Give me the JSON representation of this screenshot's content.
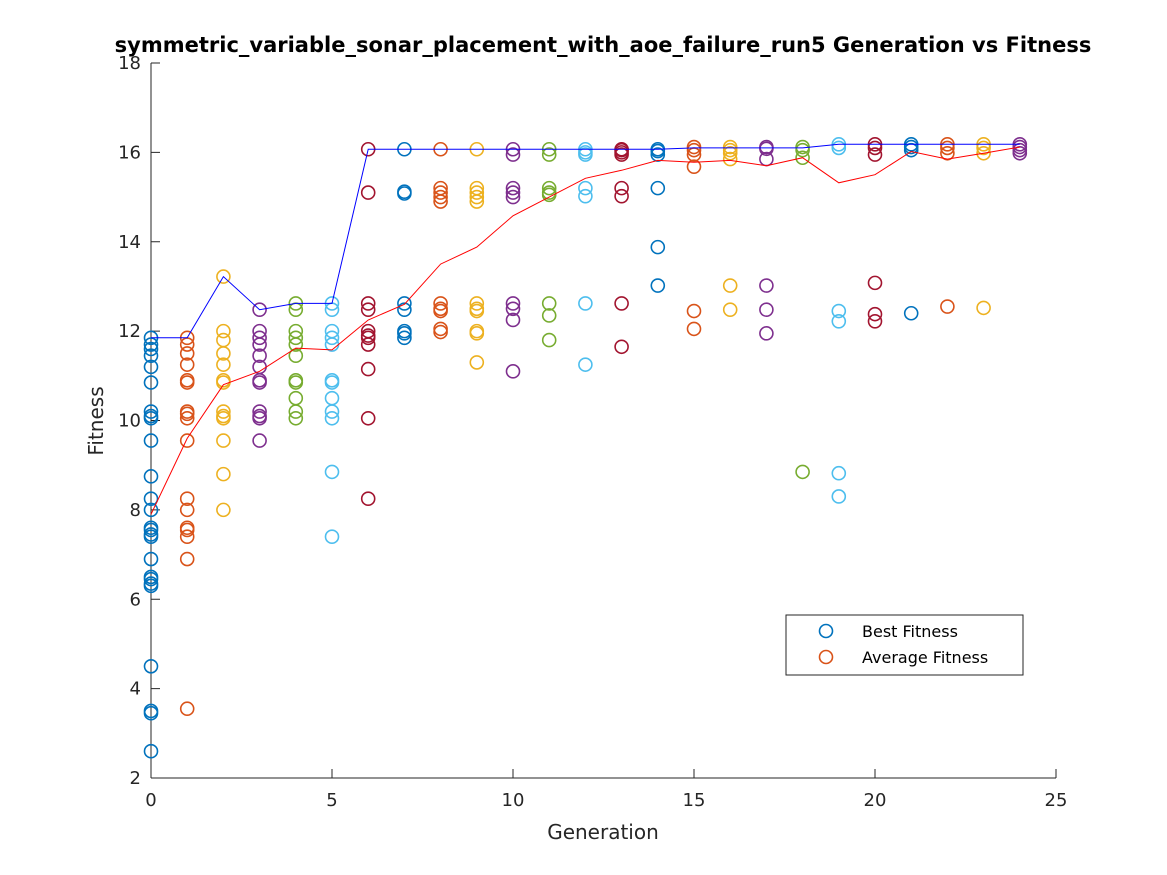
{
  "chart_data": {
    "type": "scatter",
    "title": "symmetric_variable_sonar_placement_with_aoe_failure_run5 Generation vs Fitness",
    "xlabel": "Generation",
    "ylabel": "Fitness",
    "xlim": [
      0,
      25
    ],
    "ylim": [
      2,
      18
    ],
    "xticks": [
      0,
      5,
      10,
      15,
      20,
      25
    ],
    "yticks": [
      2,
      4,
      6,
      8,
      10,
      12,
      14,
      16,
      18
    ],
    "grid": false,
    "legend": {
      "placement": "bottom-right",
      "entries": [
        "Best Fitness",
        "Average Fitness"
      ]
    },
    "colors": {
      "blue": "#0072bd",
      "orange": "#d95319",
      "yellow": "#edb120",
      "purple": "#7e2f8e",
      "green": "#77ac30",
      "cyan": "#4dbeee",
      "maroon": "#a2142f",
      "best_line": "#0000ff",
      "avg_line": "#ff0000"
    },
    "best_fitness_line": {
      "x": [
        0,
        1,
        2,
        3,
        4,
        5,
        6,
        7,
        8,
        9,
        10,
        11,
        12,
        13,
        14,
        15,
        16,
        17,
        18,
        19,
        20,
        21,
        22,
        23,
        24
      ],
      "y": [
        11.85,
        11.85,
        13.22,
        12.48,
        12.62,
        12.62,
        16.07,
        16.07,
        16.07,
        16.07,
        16.07,
        16.07,
        16.07,
        16.07,
        16.07,
        16.1,
        16.1,
        16.1,
        16.1,
        16.18,
        16.18,
        16.18,
        16.18,
        16.18,
        16.18
      ]
    },
    "average_fitness_line": {
      "x": [
        0,
        1,
        2,
        3,
        4,
        5,
        6,
        7,
        8,
        9,
        10,
        11,
        12,
        13,
        14,
        15,
        16,
        17,
        18,
        19,
        20,
        21,
        22,
        23,
        24
      ],
      "y": [
        7.9,
        9.6,
        10.8,
        11.1,
        11.62,
        11.58,
        12.25,
        12.6,
        13.5,
        13.88,
        14.58,
        15.0,
        15.42,
        15.6,
        15.82,
        15.78,
        15.82,
        15.7,
        15.88,
        15.32,
        15.5,
        16.02,
        15.85,
        15.98,
        16.12
      ]
    },
    "generations": [
      {
        "x": 0,
        "color": "blue",
        "values": [
          11.85,
          11.7,
          11.6,
          11.45,
          11.2,
          10.85,
          10.2,
          10.1,
          10.05,
          9.55,
          8.75,
          8.25,
          8.0,
          7.6,
          7.55,
          7.45,
          7.4,
          6.9,
          6.5,
          6.45,
          6.35,
          6.3,
          4.5,
          3.5,
          3.45,
          2.6
        ]
      },
      {
        "x": 1,
        "color": "orange",
        "values": [
          11.85,
          11.7,
          11.5,
          11.25,
          10.9,
          10.85,
          10.2,
          10.15,
          10.05,
          9.55,
          8.25,
          8.0,
          7.6,
          7.55,
          7.4,
          6.9,
          3.55
        ]
      },
      {
        "x": 2,
        "color": "yellow",
        "values": [
          13.22,
          12.0,
          11.8,
          11.5,
          11.25,
          10.9,
          10.85,
          10.2,
          10.1,
          10.05,
          9.55,
          8.8,
          8.0
        ]
      },
      {
        "x": 3,
        "color": "purple",
        "values": [
          12.48,
          12.0,
          11.85,
          11.7,
          11.45,
          11.2,
          10.9,
          10.85,
          10.2,
          10.1,
          10.05,
          9.55
        ]
      },
      {
        "x": 4,
        "color": "green",
        "values": [
          12.62,
          12.48,
          12.0,
          11.85,
          11.7,
          11.45,
          10.9,
          10.85,
          10.5,
          10.2,
          10.05
        ]
      },
      {
        "x": 5,
        "color": "cyan",
        "values": [
          12.62,
          12.48,
          12.0,
          11.85,
          11.7,
          10.9,
          10.85,
          10.5,
          10.2,
          10.05,
          8.85,
          7.4
        ]
      },
      {
        "x": 6,
        "color": "maroon",
        "values": [
          16.07,
          15.1,
          12.62,
          12.48,
          12.0,
          11.9,
          11.85,
          11.7,
          11.15,
          10.05,
          8.25
        ]
      },
      {
        "x": 7,
        "color": "blue",
        "values": [
          16.07,
          15.12,
          15.08,
          12.62,
          12.48,
          12.0,
          11.95,
          11.85
        ]
      },
      {
        "x": 8,
        "color": "orange",
        "values": [
          16.07,
          15.2,
          15.1,
          15.0,
          14.9,
          12.62,
          12.5,
          12.45,
          12.05,
          11.98
        ]
      },
      {
        "x": 9,
        "color": "yellow",
        "values": [
          16.07,
          15.2,
          15.1,
          15.0,
          14.9,
          12.62,
          12.5,
          12.45,
          12.0,
          11.95,
          11.3
        ]
      },
      {
        "x": 10,
        "color": "purple",
        "values": [
          16.07,
          15.95,
          15.2,
          15.1,
          15.0,
          12.62,
          12.5,
          12.25,
          11.1
        ]
      },
      {
        "x": 11,
        "color": "green",
        "values": [
          16.07,
          15.95,
          15.2,
          15.1,
          15.05,
          12.62,
          12.35,
          11.8
        ]
      },
      {
        "x": 12,
        "color": "cyan",
        "values": [
          16.07,
          16.0,
          15.95,
          15.2,
          15.02,
          12.62,
          11.25
        ]
      },
      {
        "x": 13,
        "color": "maroon",
        "values": [
          16.07,
          16.05,
          16.0,
          15.95,
          15.2,
          15.02,
          12.62,
          11.65
        ]
      },
      {
        "x": 14,
        "color": "blue",
        "values": [
          16.07,
          16.03,
          15.95,
          15.2,
          13.88,
          13.02
        ]
      },
      {
        "x": 15,
        "color": "orange",
        "values": [
          16.12,
          16.05,
          15.95,
          15.68,
          12.45,
          12.05
        ]
      },
      {
        "x": 16,
        "color": "yellow",
        "values": [
          16.12,
          16.05,
          15.98,
          15.85,
          13.02,
          12.48
        ]
      },
      {
        "x": 17,
        "color": "purple",
        "values": [
          16.12,
          16.08,
          15.85,
          13.02,
          12.48,
          11.95
        ]
      },
      {
        "x": 18,
        "color": "green",
        "values": [
          16.12,
          16.05,
          15.88,
          8.85
        ]
      },
      {
        "x": 19,
        "color": "cyan",
        "values": [
          16.18,
          16.1,
          12.45,
          12.22,
          8.82,
          8.3
        ]
      },
      {
        "x": 20,
        "color": "maroon",
        "values": [
          16.18,
          16.1,
          15.95,
          13.08,
          12.38,
          12.22
        ]
      },
      {
        "x": 21,
        "color": "blue",
        "values": [
          16.18,
          16.12,
          16.05,
          12.4
        ]
      },
      {
        "x": 22,
        "color": "orange",
        "values": [
          16.18,
          16.1,
          15.98,
          12.55
        ]
      },
      {
        "x": 23,
        "color": "yellow",
        "values": [
          16.18,
          16.1,
          15.98,
          12.52
        ]
      },
      {
        "x": 24,
        "color": "purple",
        "values": [
          16.18,
          16.12,
          16.05,
          15.98
        ]
      }
    ]
  }
}
